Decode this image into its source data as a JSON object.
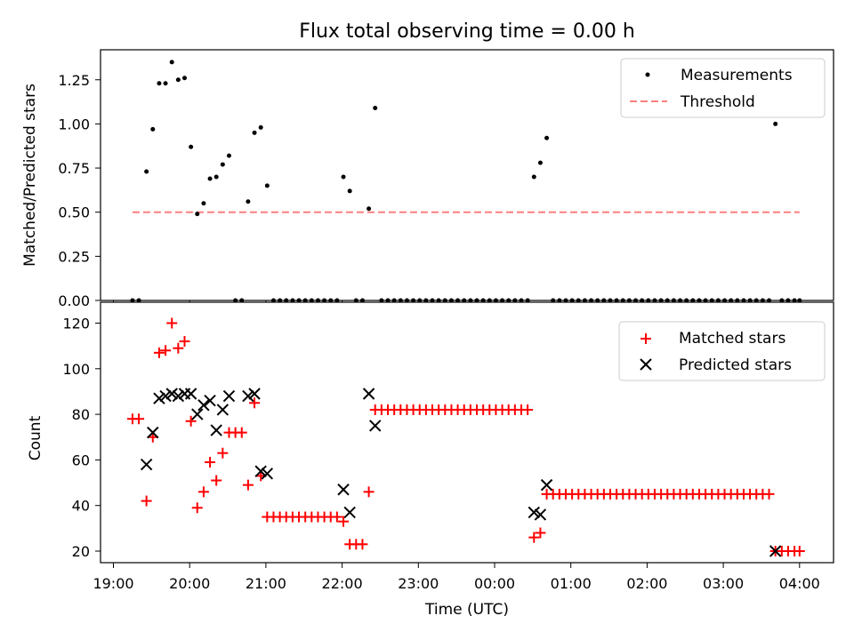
{
  "figure": {
    "title": "Flux total observing time = 0.00 h"
  },
  "chart_data": [
    {
      "type": "scatter",
      "panel": "top",
      "ylabel": "Matched/Predicted stars",
      "xlabel": "",
      "ylim": [
        0,
        1.42
      ],
      "yticks": [
        0.0,
        0.25,
        0.5,
        0.75,
        1.0,
        1.25
      ],
      "legend_position": "top-right",
      "legend": [
        "Measurements",
        "Threshold"
      ],
      "threshold": {
        "name": "Threshold",
        "value": 0.5,
        "x_start": "19:15",
        "x_end": "04:00",
        "color": "#ff7f7f"
      },
      "series": [
        {
          "name": "Measurements",
          "color": "#000000",
          "x": [
            "19:15",
            "19:20",
            "19:26",
            "19:31",
            "19:36",
            "19:41",
            "19:46",
            "19:51",
            "19:56",
            "20:01",
            "20:06",
            "20:11",
            "20:16",
            "20:21",
            "20:26",
            "20:31",
            "20:36",
            "20:41",
            "20:46",
            "20:51",
            "20:56",
            "21:01",
            "21:06",
            "21:11",
            "21:16",
            "21:21",
            "21:26",
            "21:31",
            "21:36",
            "21:41",
            "21:46",
            "21:51",
            "21:56",
            "22:01",
            "22:06",
            "22:11",
            "22:16",
            "22:21",
            "22:26",
            "22:31",
            "22:36",
            "22:41",
            "22:46",
            "22:51",
            "22:56",
            "23:01",
            "23:06",
            "23:11",
            "23:16",
            "23:21",
            "23:26",
            "23:31",
            "23:36",
            "23:41",
            "23:46",
            "23:51",
            "23:56",
            "00:01",
            "00:06",
            "00:11",
            "00:16",
            "00:21",
            "00:26",
            "00:31",
            "00:36",
            "00:41",
            "00:46",
            "00:51",
            "00:56",
            "01:01",
            "01:06",
            "01:11",
            "01:16",
            "01:21",
            "01:26",
            "01:31",
            "01:36",
            "01:41",
            "01:46",
            "01:51",
            "01:56",
            "02:01",
            "02:06",
            "02:11",
            "02:16",
            "02:21",
            "02:26",
            "02:31",
            "02:36",
            "02:41",
            "02:46",
            "02:51",
            "02:56",
            "03:01",
            "03:06",
            "03:11",
            "03:16",
            "03:21",
            "03:26",
            "03:31",
            "03:36",
            "03:41",
            "03:46",
            "03:51",
            "03:56",
            "04:00"
          ],
          "y": [
            0,
            0,
            0.73,
            0.97,
            1.23,
            1.23,
            1.35,
            1.25,
            1.26,
            0.87,
            0.49,
            0.55,
            0.69,
            0.7,
            0.77,
            0.82,
            0,
            0,
            0.56,
            0.95,
            0.98,
            0.65,
            0,
            0,
            0,
            0,
            0,
            0,
            0,
            0,
            0,
            0,
            0,
            0.7,
            0.62,
            0,
            0,
            0.52,
            1.09,
            0,
            0,
            0,
            0,
            0,
            0,
            0,
            0,
            0,
            0,
            0,
            0,
            0,
            0,
            0,
            0,
            0,
            0,
            0,
            0,
            0,
            0,
            0,
            0,
            0.7,
            0.78,
            0.92,
            0,
            0,
            0,
            0,
            0,
            0,
            0,
            0,
            0,
            0,
            0,
            0,
            0,
            0,
            0,
            0,
            0,
            0,
            0,
            0,
            0,
            0,
            0,
            0,
            0,
            0,
            0,
            0,
            0,
            0,
            0,
            0,
            0,
            0,
            0,
            1.0,
            0,
            0,
            0,
            0
          ]
        }
      ]
    },
    {
      "type": "scatter",
      "panel": "bottom",
      "ylabel": "Count",
      "xlabel": "Time (UTC)",
      "ylim": [
        15,
        125
      ],
      "yticks": [
        20,
        40,
        60,
        80,
        100,
        120
      ],
      "xticks": [
        "19:00",
        "20:00",
        "21:00",
        "22:00",
        "23:00",
        "00:00",
        "01:00",
        "02:00",
        "03:00",
        "04:00"
      ],
      "legend_position": "top-right",
      "legend": [
        "Matched stars",
        "Predicted stars"
      ],
      "series": [
        {
          "name": "Matched stars",
          "marker": "plus",
          "color": "#ff0000",
          "x": [
            "19:15",
            "19:20",
            "19:26",
            "19:31",
            "19:36",
            "19:41",
            "19:46",
            "19:51",
            "19:56",
            "20:01",
            "20:06",
            "20:11",
            "20:16",
            "20:21",
            "20:26",
            "20:31",
            "20:36",
            "20:41",
            "20:46",
            "20:51",
            "20:56",
            "21:01",
            "21:06",
            "21:11",
            "21:16",
            "21:21",
            "21:26",
            "21:31",
            "21:36",
            "21:41",
            "21:46",
            "21:51",
            "21:56",
            "22:01",
            "22:06",
            "22:11",
            "22:16",
            "22:21",
            "22:26",
            "22:31",
            "22:36",
            "22:41",
            "22:46",
            "22:51",
            "22:56",
            "23:01",
            "23:06",
            "23:11",
            "23:16",
            "23:21",
            "23:26",
            "23:31",
            "23:36",
            "23:41",
            "23:46",
            "23:51",
            "23:56",
            "00:01",
            "00:06",
            "00:11",
            "00:16",
            "00:21",
            "00:26",
            "00:31",
            "00:36",
            "00:41",
            "00:46",
            "00:51",
            "00:56",
            "01:01",
            "01:06",
            "01:11",
            "01:16",
            "01:21",
            "01:26",
            "01:31",
            "01:36",
            "01:41",
            "01:46",
            "01:51",
            "01:56",
            "02:01",
            "02:06",
            "02:11",
            "02:16",
            "02:21",
            "02:26",
            "02:31",
            "02:36",
            "02:41",
            "02:46",
            "02:51",
            "02:56",
            "03:01",
            "03:06",
            "03:11",
            "03:16",
            "03:21",
            "03:26",
            "03:31",
            "03:36",
            "03:41",
            "03:46",
            "03:51",
            "03:56",
            "04:00"
          ],
          "y": [
            78,
            78,
            42,
            70,
            107,
            108,
            120,
            109,
            112,
            77,
            39,
            46,
            59,
            51,
            63,
            72,
            72,
            72,
            49,
            85,
            53,
            35,
            35,
            35,
            35,
            35,
            35,
            35,
            35,
            35,
            35,
            35,
            35,
            33,
            23,
            23,
            23,
            46,
            82,
            82,
            82,
            82,
            82,
            82,
            82,
            82,
            82,
            82,
            82,
            82,
            82,
            82,
            82,
            82,
            82,
            82,
            82,
            82,
            82,
            82,
            82,
            82,
            82,
            26,
            28,
            45,
            45,
            45,
            45,
            45,
            45,
            45,
            45,
            45,
            45,
            45,
            45,
            45,
            45,
            45,
            45,
            45,
            45,
            45,
            45,
            45,
            45,
            45,
            45,
            45,
            45,
            45,
            45,
            45,
            45,
            45,
            45,
            45,
            45,
            45,
            45,
            20,
            20,
            20,
            20,
            20
          ]
        },
        {
          "name": "Predicted stars",
          "marker": "x",
          "color": "#000000",
          "x": [
            "19:26",
            "19:31",
            "19:36",
            "19:41",
            "19:46",
            "19:51",
            "19:56",
            "20:01",
            "20:06",
            "20:11",
            "20:16",
            "20:21",
            "20:26",
            "20:31",
            "20:46",
            "20:51",
            "20:56",
            "21:01",
            "22:01",
            "22:06",
            "22:21",
            "22:26",
            "00:31",
            "00:36",
            "00:41",
            "03:41"
          ],
          "y": [
            58,
            72,
            87,
            88,
            89,
            88,
            89,
            89,
            80,
            84,
            86,
            73,
            82,
            88,
            88,
            89,
            55,
            54,
            47,
            37,
            89,
            75,
            37,
            36,
            49,
            20
          ]
        }
      ]
    }
  ]
}
